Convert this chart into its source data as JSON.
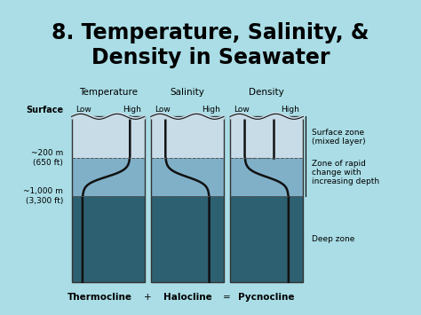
{
  "title": "8. Temperature, Salinity, &\nDensity in Seawater",
  "title_bg": "#aadde6",
  "diagram_bg": "#d4a84b",
  "figsize": [
    4.74,
    3.55
  ],
  "dpi": 100,
  "title_fontsize": 17,
  "col_labels": [
    "Temperature",
    "Salinity",
    "Density"
  ],
  "col_low_high": [
    "Low",
    "High",
    "Low",
    "High",
    "Low",
    "High"
  ],
  "depth_labels": [
    "Surface",
    "~200 m\n(650 ft)",
    "~1,000 m\n(3,300 ft)"
  ],
  "right_labels": [
    "Surface zone\n(mixed layer)",
    "Zone of rapid\nchange with\nincreasing depth",
    "Deep zone"
  ],
  "bottom_labels": [
    "Thermocline",
    "+",
    "Halocline",
    "=",
    "Pycnocline"
  ],
  "zone_colors": {
    "surface": "#c8dce8",
    "transition": "#7fb0c8",
    "deep": "#2d6070"
  },
  "box_border": "#333333",
  "curve_color": "#111111"
}
